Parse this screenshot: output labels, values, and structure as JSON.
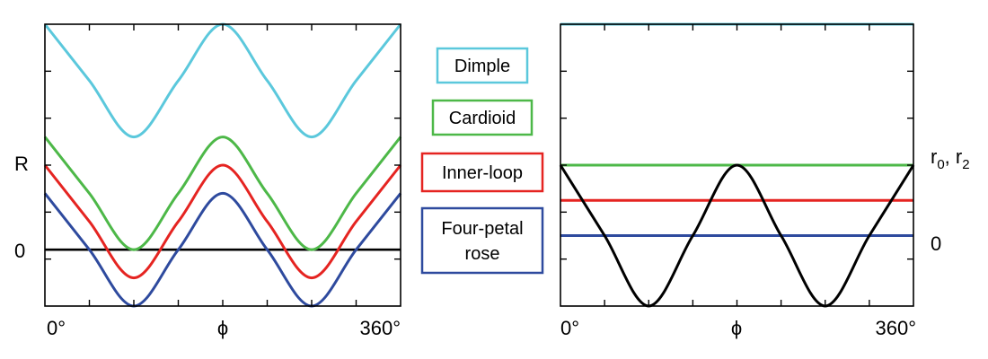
{
  "chart_data": [
    {
      "type": "line",
      "panel": "left",
      "xlabel": "ϕ",
      "x_tick_labels": [
        "0°",
        "360°"
      ],
      "ylabel": "R",
      "y_tick_labels": [
        "0"
      ],
      "xlim": [
        0,
        360
      ],
      "ylim": [
        -1.0,
        4.0
      ],
      "frame": "box",
      "series": [
        {
          "name": "Dimple",
          "color": "#5bc8dc",
          "x": [
            0,
            45,
            90,
            135,
            180,
            225,
            270,
            315,
            360
          ],
          "y": [
            4.0,
            3.0,
            2.0,
            3.0,
            4.0,
            3.0,
            2.0,
            3.0,
            4.0
          ]
        },
        {
          "name": "Cardioid",
          "color": "#4db848",
          "x": [
            0,
            45,
            90,
            135,
            180,
            225,
            270,
            315,
            360
          ],
          "y": [
            2.0,
            1.0,
            0.0,
            1.0,
            2.0,
            1.0,
            0.0,
            1.0,
            2.0
          ]
        },
        {
          "name": "Inner-loop",
          "color": "#e52421",
          "x": [
            0,
            45,
            90,
            135,
            180,
            225,
            270,
            315,
            360
          ],
          "y": [
            1.5,
            0.5,
            -0.5,
            0.5,
            1.5,
            0.5,
            -0.5,
            0.5,
            1.5
          ]
        },
        {
          "name": "Four-petal rose",
          "color": "#2e4a9e",
          "x": [
            0,
            45,
            90,
            135,
            180,
            225,
            270,
            315,
            360
          ],
          "y": [
            1.0,
            0.0,
            -1.0,
            0.0,
            1.0,
            0.0,
            -1.0,
            0.0,
            1.0
          ]
        }
      ],
      "reference_lines": [
        {
          "y": 0,
          "color": "#000000"
        }
      ]
    },
    {
      "type": "line",
      "panel": "right",
      "xlabel": "ϕ",
      "x_tick_labels": [
        "0°",
        "360°"
      ],
      "ylabel": "r₀, r₂",
      "y_tick_labels": [
        "0"
      ],
      "xlim": [
        0,
        360
      ],
      "ylim": [
        -1.0,
        3.0
      ],
      "frame": "box",
      "series": [
        {
          "name": "Dimple",
          "color": "#5bc8dc",
          "x": [
            0,
            360
          ],
          "y": [
            3.0,
            3.0
          ]
        },
        {
          "name": "Cardioid",
          "color": "#4db848",
          "x": [
            0,
            360
          ],
          "y": [
            1.0,
            1.0
          ]
        },
        {
          "name": "Inner-loop",
          "color": "#e52421",
          "x": [
            0,
            360
          ],
          "y": [
            0.5,
            0.5
          ]
        },
        {
          "name": "Four-petal rose",
          "color": "#2e4a9e",
          "x": [
            0,
            360
          ],
          "y": [
            0.0,
            0.0
          ]
        },
        {
          "name": "",
          "color": "#000000",
          "x": [
            0,
            45,
            90,
            135,
            180,
            225,
            270,
            315,
            360
          ],
          "y": [
            1.0,
            0.0,
            -1.0,
            0.0,
            1.0,
            0.0,
            -1.0,
            0.0,
            1.0
          ]
        }
      ]
    }
  ],
  "legend": {
    "placement": "center, between panels",
    "items": [
      {
        "label_lines": [
          "Dimple"
        ],
        "color": "#5bc8dc"
      },
      {
        "label_lines": [
          "Cardioid"
        ],
        "color": "#4db848"
      },
      {
        "label_lines": [
          "Inner-loop"
        ],
        "color": "#e52421"
      },
      {
        "label_lines": [
          "Four-petal",
          "rose"
        ],
        "color": "#2e4a9e"
      }
    ]
  },
  "right_ylabel": {
    "main": "r",
    "sub0": "0",
    "sep": ", ",
    "sub2": "2"
  }
}
